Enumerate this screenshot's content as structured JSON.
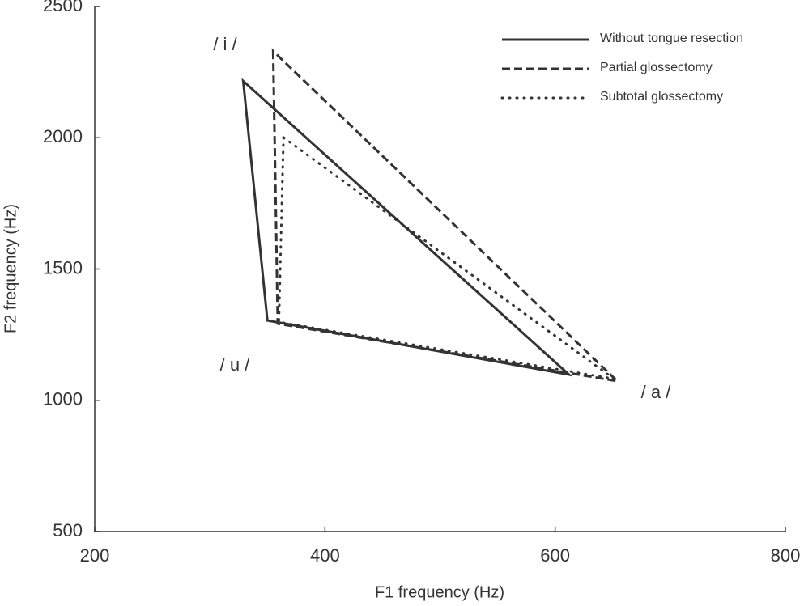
{
  "chart_data": {
    "type": "line",
    "x_label": "F1 frequency (Hz)",
    "y_label": "F2 frequency (Hz)",
    "xlim": [
      200,
      800
    ],
    "xticks": [
      200,
      400,
      600,
      800
    ],
    "ylim": [
      500,
      2500
    ],
    "yticks": [
      500,
      1000,
      1500,
      2000,
      2500
    ],
    "legend": "upper right",
    "annotations": [
      "/ i /",
      "/ u /",
      "/ a /"
    ],
    "series": [
      {
        "name": "Without tongue resection",
        "color": "#333333",
        "style": "solid",
        "x": [
          329,
          350,
          612
        ],
        "values": [
          2216,
          1304,
          1098
        ]
      },
      {
        "name": "Partial glossectomy",
        "color": "#333333",
        "style": "dashed",
        "x": [
          355,
          359,
          654
        ],
        "values": [
          2330,
          1292,
          1073
        ]
      },
      {
        "name": "Subtotal glossectomy",
        "color": "#333333",
        "style": "dotted",
        "x": [
          364,
          360,
          651
        ],
        "values": [
          2001,
          1298,
          1082
        ]
      }
    ]
  }
}
